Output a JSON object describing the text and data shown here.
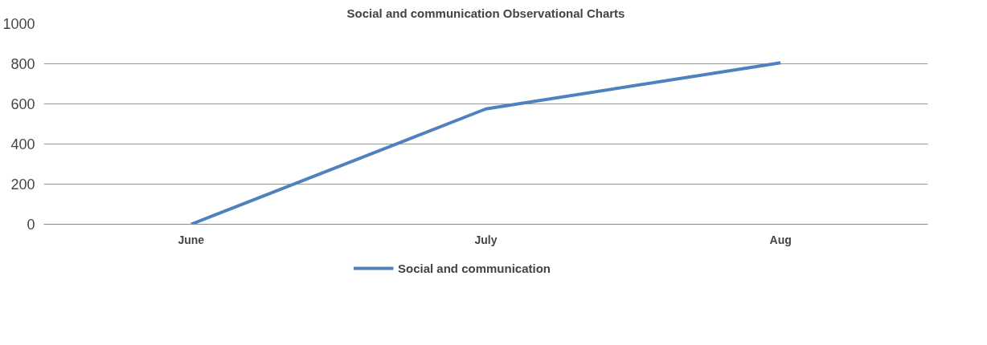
{
  "chart_data": {
    "type": "line",
    "title": "Social and communication Observational Charts",
    "categories": [
      "June",
      "July",
      "Aug"
    ],
    "series": [
      {
        "name": "Social and communication",
        "color": "#4f81bd",
        "values": [
          0,
          575,
          805
        ]
      }
    ],
    "ylim": [
      0,
      1000
    ],
    "yticks": [
      0,
      200,
      400,
      600,
      800,
      1000
    ],
    "grid": "y",
    "legend": "bottom",
    "marker": "none",
    "line_style": "solid"
  }
}
